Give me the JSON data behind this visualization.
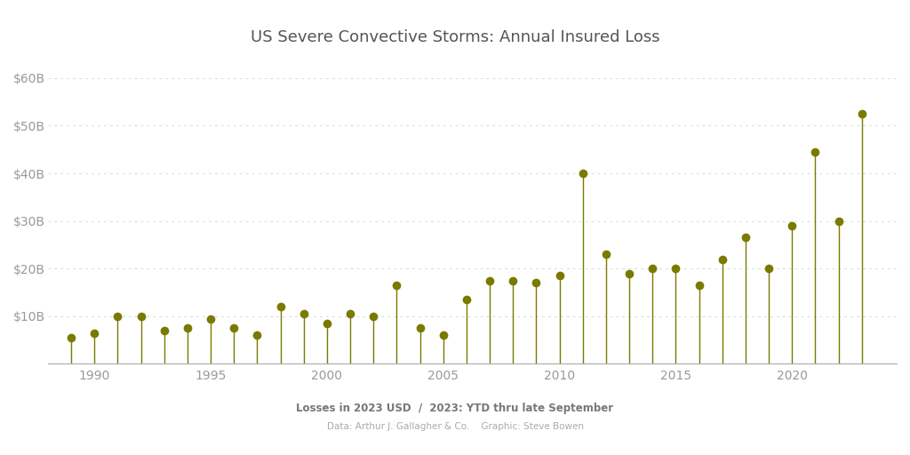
{
  "title": "US Severe Convective Storms: Annual Insured Loss",
  "subtitle_line1": "Losses in 2023 USD  /  2023: YTD thru late September",
  "subtitle_line2": "Data: Arthur J. Gallagher & Co.    Graphic: Steve Bowen",
  "years": [
    1989,
    1990,
    1991,
    1992,
    1993,
    1994,
    1995,
    1996,
    1997,
    1998,
    1999,
    2000,
    2001,
    2002,
    2003,
    2004,
    2005,
    2006,
    2007,
    2008,
    2009,
    2010,
    2011,
    2012,
    2013,
    2014,
    2015,
    2016,
    2017,
    2018,
    2019,
    2020,
    2021,
    2022,
    2023
  ],
  "values": [
    5.5,
    6.5,
    10.0,
    10.0,
    7.0,
    7.5,
    9.5,
    7.5,
    6.0,
    12.0,
    10.5,
    8.5,
    10.5,
    10.0,
    16.5,
    7.5,
    6.0,
    13.5,
    17.5,
    17.5,
    17.0,
    18.5,
    40.0,
    23.0,
    19.0,
    20.0,
    20.0,
    16.5,
    22.0,
    26.5,
    20.0,
    29.0,
    44.5,
    30.0,
    52.5
  ],
  "color": "#7a7a00",
  "background_color": "#ffffff",
  "ylim": [
    0,
    65
  ],
  "yticks": [
    10,
    20,
    30,
    40,
    50,
    60
  ],
  "ytick_labels": [
    "$10B",
    "$20B",
    "$30B",
    "$40B",
    "$50B",
    "$60B"
  ],
  "xticks": [
    1990,
    1995,
    2000,
    2005,
    2010,
    2015,
    2020
  ],
  "xlim_left": 1988.0,
  "xlim_right": 2024.5,
  "marker_size": 7,
  "line_width": 1.0,
  "title_fontsize": 13,
  "subtitle1_fontsize": 8.5,
  "subtitle2_fontsize": 7.5,
  "tick_fontsize": 10,
  "tick_color": "#999999",
  "grid_color": "#cccccc",
  "grid_linewidth": 0.5,
  "spine_color": "#aaaaaa"
}
